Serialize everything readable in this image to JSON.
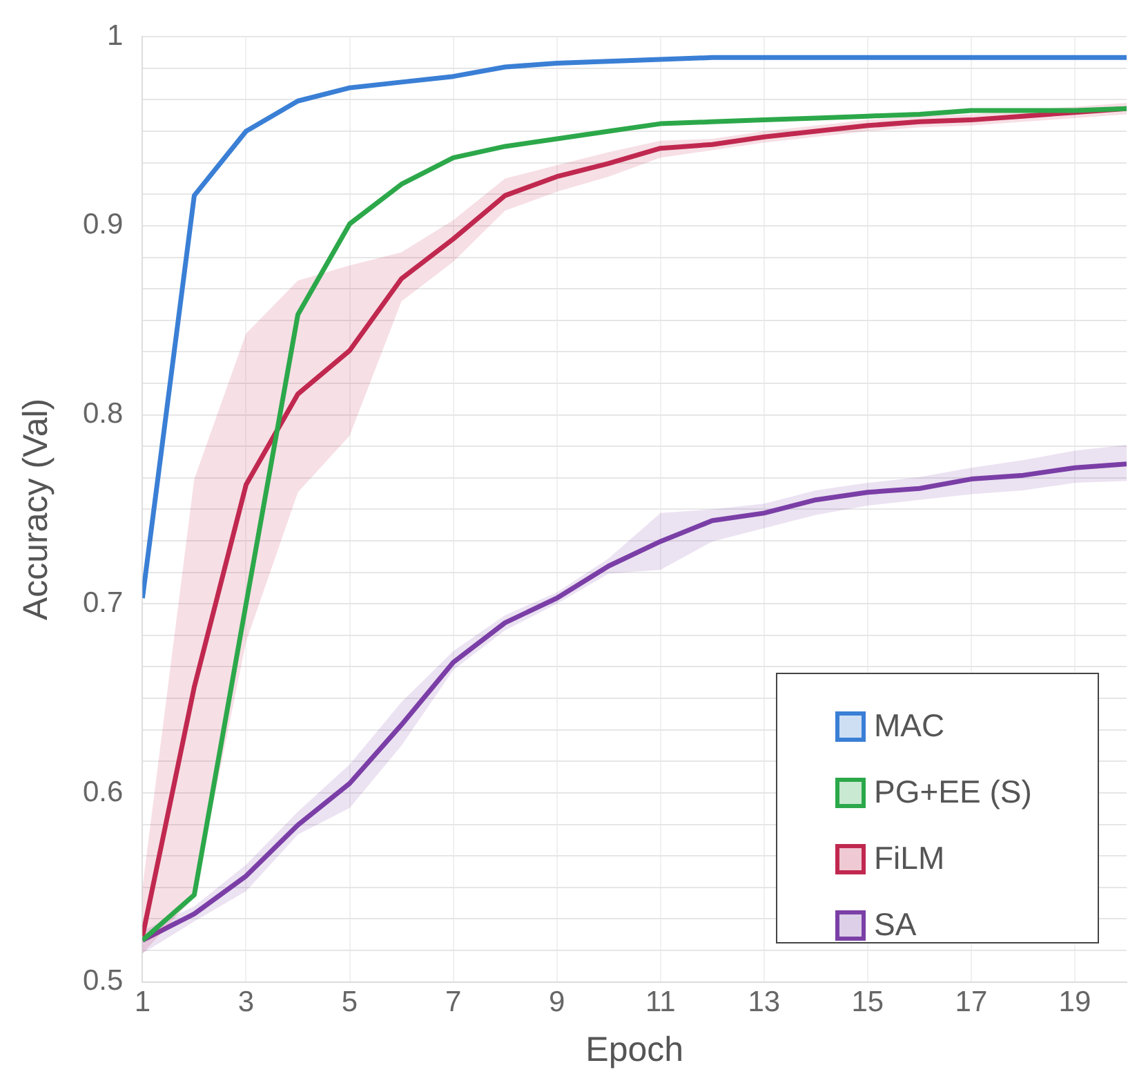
{
  "chart_data": {
    "type": "line",
    "xlabel": "Epoch",
    "ylabel": "Accuracy (Val)",
    "x": [
      1,
      2,
      3,
      4,
      5,
      6,
      7,
      8,
      9,
      10,
      11,
      12,
      13,
      14,
      15,
      16,
      17,
      18,
      19,
      20
    ],
    "xlim": [
      1,
      20
    ],
    "xticks": [
      1,
      3,
      5,
      7,
      9,
      11,
      13,
      15,
      17,
      19
    ],
    "ylim": [
      0.5,
      1
    ],
    "yticks": [
      0.5,
      {
        "value": 0.5167,
        "label": null
      },
      {
        "value": 0.5333,
        "label": null
      },
      {
        "value": 0.55,
        "label": null
      },
      {
        "value": 0.5667,
        "label": null
      },
      {
        "value": 0.5833,
        "label": null
      },
      0.6,
      {
        "value": 0.6167,
        "label": null
      },
      {
        "value": 0.6333,
        "label": null
      },
      {
        "value": 0.65,
        "label": null
      },
      {
        "value": 0.6667,
        "label": null
      },
      {
        "value": 0.6833,
        "label": null
      },
      0.7,
      {
        "value": 0.7167,
        "label": null
      },
      {
        "value": 0.7333,
        "label": null
      },
      {
        "value": 0.75,
        "label": null
      },
      {
        "value": 0.7667,
        "label": null
      },
      {
        "value": 0.7833,
        "label": null
      },
      0.8,
      {
        "value": 0.8167,
        "label": null
      },
      {
        "value": 0.8333,
        "label": null
      },
      {
        "value": 0.85,
        "label": null
      },
      {
        "value": 0.8667,
        "label": null
      },
      {
        "value": 0.8833,
        "label": null
      },
      0.9,
      {
        "value": 0.9167,
        "label": null
      },
      {
        "value": 0.9333,
        "label": null
      },
      {
        "value": 0.95,
        "label": null
      },
      {
        "value": 0.9667,
        "label": null
      },
      {
        "value": 0.9833,
        "label": null
      },
      1
    ],
    "grid": true,
    "legend": "bottom right",
    "marker": "none",
    "line_style": "solid",
    "series": [
      {
        "name": "MAC",
        "color": "#3a7fd5",
        "values": [
          0.703,
          0.916,
          0.95,
          0.966,
          0.973,
          0.976,
          0.979,
          0.984,
          0.986,
          0.987,
          0.988,
          0.989,
          0.989,
          0.989,
          0.989,
          0.989,
          0.989,
          0.989,
          0.989,
          0.989
        ]
      },
      {
        "name": "PG+EE (S)",
        "color": "#2ca84a",
        "values": [
          0.522,
          0.546,
          0.7,
          0.853,
          0.901,
          0.922,
          0.936,
          0.942,
          0.946,
          0.95,
          0.954,
          0.955,
          0.956,
          0.957,
          0.958,
          0.959,
          0.961,
          0.961,
          0.961,
          0.962
        ]
      },
      {
        "name": "FiLM",
        "color": "#c0284f",
        "values": [
          0.524,
          0.656,
          0.763,
          0.811,
          0.834,
          0.872,
          0.893,
          0.916,
          0.926,
          0.933,
          0.941,
          0.943,
          0.947,
          0.95,
          0.953,
          0.955,
          0.956,
          0.958,
          0.96,
          0.962
        ],
        "lower": [
          0.515,
          0.545,
          0.68,
          0.759,
          0.789,
          0.86,
          0.881,
          0.908,
          0.918,
          0.926,
          0.936,
          0.94,
          0.944,
          0.947,
          0.95,
          0.952,
          0.953,
          0.955,
          0.957,
          0.959
        ],
        "upper": [
          0.55,
          0.766,
          0.843,
          0.871,
          0.879,
          0.886,
          0.903,
          0.925,
          0.932,
          0.939,
          0.945,
          0.946,
          0.95,
          0.953,
          0.956,
          0.958,
          0.959,
          0.961,
          0.963,
          0.965
        ]
      },
      {
        "name": "SA",
        "color": "#7b3fa6",
        "values": [
          0.522,
          0.536,
          0.556,
          0.583,
          0.605,
          0.636,
          0.669,
          0.69,
          0.703,
          0.72,
          0.733,
          0.744,
          0.748,
          0.755,
          0.759,
          0.761,
          0.766,
          0.768,
          0.772,
          0.774
        ],
        "lower": [
          0.515,
          0.532,
          0.548,
          0.578,
          0.592,
          0.625,
          0.665,
          0.686,
          0.7,
          0.716,
          0.718,
          0.733,
          0.74,
          0.747,
          0.752,
          0.755,
          0.758,
          0.76,
          0.764,
          0.765
        ],
        "upper": [
          0.527,
          0.54,
          0.562,
          0.59,
          0.615,
          0.648,
          0.675,
          0.694,
          0.706,
          0.724,
          0.748,
          0.75,
          0.753,
          0.76,
          0.764,
          0.767,
          0.772,
          0.776,
          0.781,
          0.784
        ]
      }
    ]
  }
}
